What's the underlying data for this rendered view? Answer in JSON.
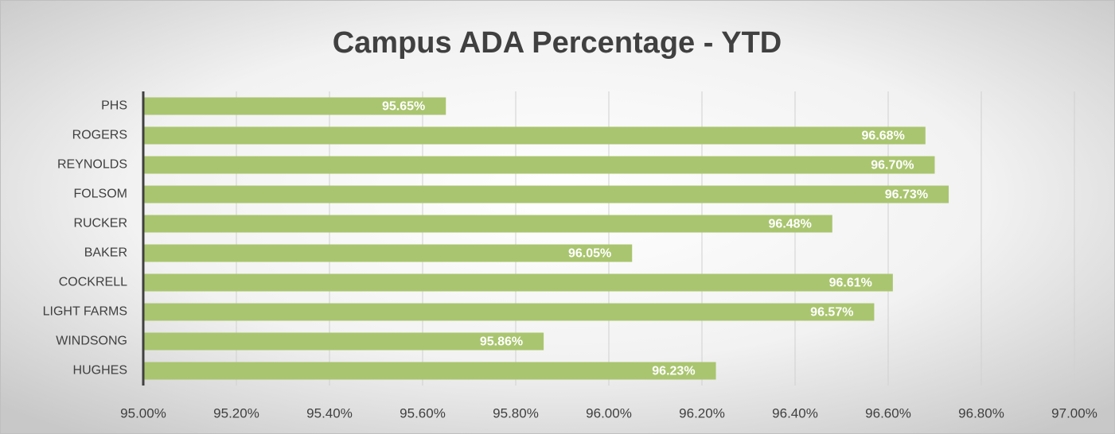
{
  "chart_data": {
    "type": "bar",
    "orientation": "horizontal",
    "title": "Campus ADA Percentage - YTD",
    "categories": [
      "PHS",
      "ROGERS",
      "REYNOLDS",
      "FOLSOM",
      "RUCKER",
      "BAKER",
      "COCKRELL",
      "LIGHT FARMS",
      "WINDSONG",
      "HUGHES"
    ],
    "values": [
      95.65,
      96.68,
      96.7,
      96.73,
      96.48,
      96.05,
      96.61,
      96.57,
      95.86,
      96.23
    ],
    "value_labels": [
      "95.65%",
      "96.68%",
      "96.70%",
      "96.73%",
      "96.48%",
      "96.05%",
      "96.61%",
      "96.57%",
      "95.86%",
      "96.23%"
    ],
    "color": "#a9c56f",
    "xlim": [
      95,
      97
    ],
    "xticks": [
      {
        "value": 95,
        "label": "95.00%"
      },
      {
        "value": 95.2,
        "label": "95.20%"
      },
      {
        "value": 95.4,
        "label": "95.40%"
      },
      {
        "value": 95.6,
        "label": "95.60%"
      },
      {
        "value": 95.8,
        "label": "95.80%"
      },
      {
        "value": 96,
        "label": "96.00%"
      },
      {
        "value": 96.2,
        "label": "96.20%"
      },
      {
        "value": 96.4,
        "label": "96.40%"
      },
      {
        "value": 96.6,
        "label": "96.60%"
      },
      {
        "value": 96.8,
        "label": "96.80%"
      },
      {
        "value": 97,
        "label": "97.00%"
      }
    ],
    "grid": true
  }
}
